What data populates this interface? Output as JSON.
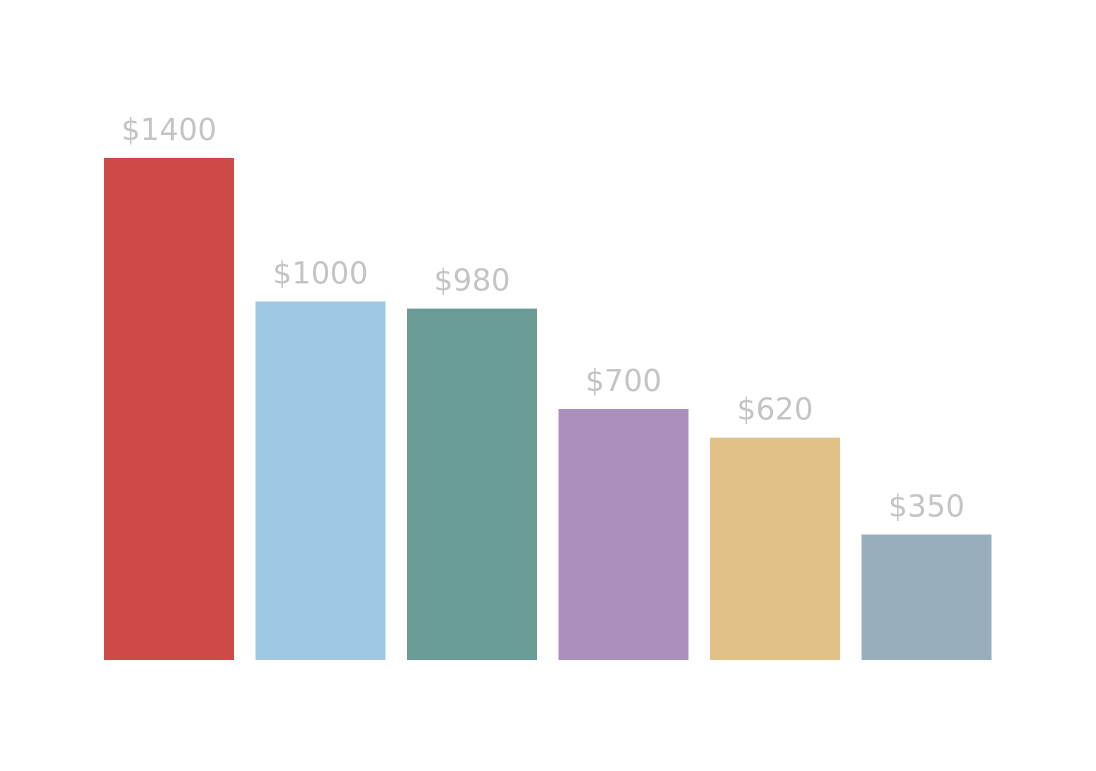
{
  "chart_data": {
    "type": "bar",
    "categories": [
      null,
      null,
      null,
      null,
      null,
      null
    ],
    "values": [
      1400,
      1000,
      980,
      700,
      620,
      350
    ],
    "value_labels": [
      "$1400",
      "$1000",
      "$980",
      "$700",
      "$620",
      "$350"
    ],
    "colors": [
      "#cf4946",
      "#9fc8e3",
      "#699c94",
      "#ac8fbc",
      "#e1c086",
      "#97aebc"
    ]
  }
}
